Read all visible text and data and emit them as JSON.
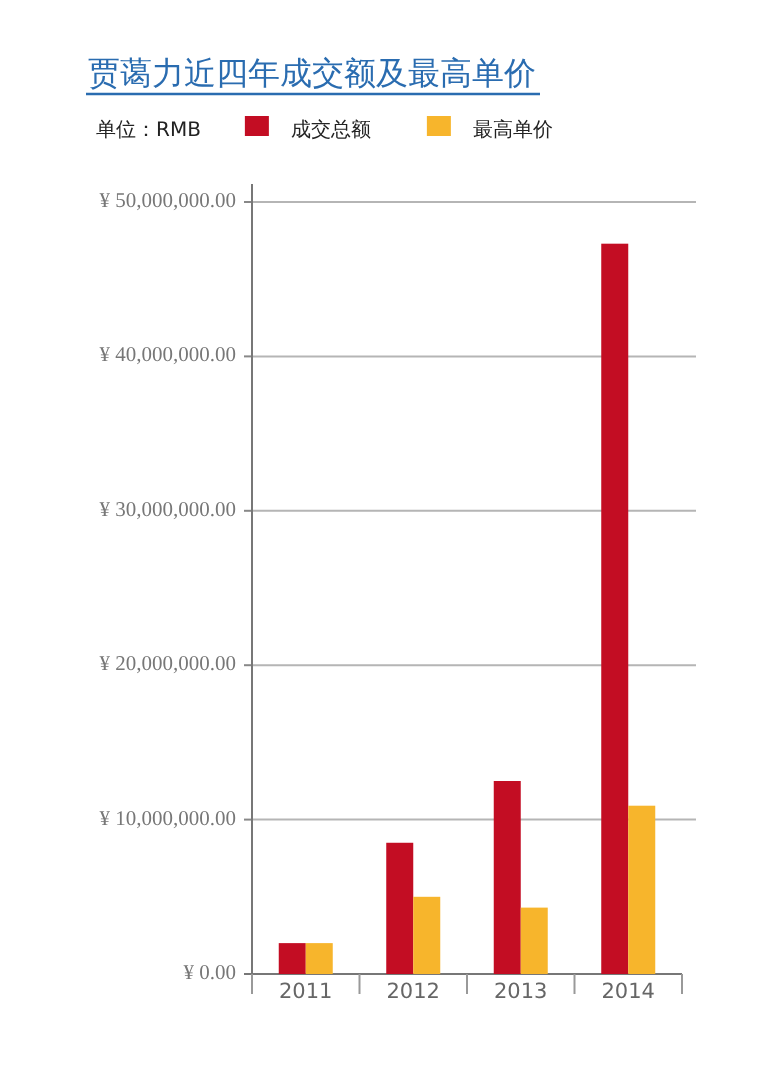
{
  "chart_data": {
    "type": "bar",
    "title": "贾蔼力近四年成交额及最高单价",
    "legend_title": "单位：RMB",
    "legend": "top",
    "grid": "y",
    "categories": [
      "2011",
      "2012",
      "2013",
      "2014"
    ],
    "series": [
      {
        "name": "成交总额",
        "color": "#c30d23",
        "values": [
          2000000,
          8500000,
          12500000,
          47300000
        ]
      },
      {
        "name": "最高单价",
        "color": "#f7b52c",
        "values": [
          2000000,
          5000000,
          4300000,
          10900000
        ]
      }
    ],
    "ylim": [
      0,
      50000000
    ],
    "yticks": [
      {
        "value": 0,
        "label": "¥ 0.00"
      },
      {
        "value": 10000000,
        "label": "¥ 10,000,000.00"
      },
      {
        "value": 20000000,
        "label": "¥ 20,000,000.00"
      },
      {
        "value": 30000000,
        "label": "¥ 30,000,000.00"
      },
      {
        "value": 40000000,
        "label": "¥ 40,000,000.00"
      },
      {
        "value": 50000000,
        "label": "¥ 50,000,000.00"
      }
    ]
  }
}
